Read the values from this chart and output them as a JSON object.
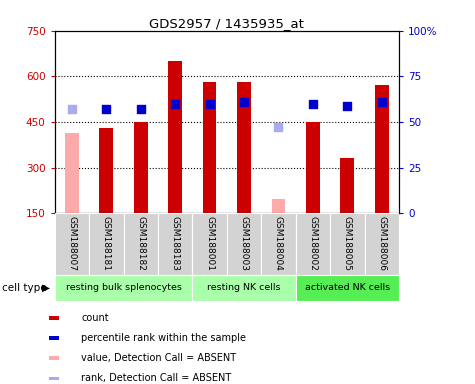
{
  "title": "GDS2957 / 1435935_at",
  "samples": [
    "GSM188007",
    "GSM188181",
    "GSM188182",
    "GSM188183",
    "GSM188001",
    "GSM188003",
    "GSM188004",
    "GSM188002",
    "GSM188005",
    "GSM188006"
  ],
  "count_values": [
    null,
    430,
    450,
    650,
    580,
    580,
    null,
    450,
    330,
    570
  ],
  "count_absent_values": [
    415,
    null,
    null,
    null,
    null,
    null,
    195,
    null,
    null,
    null
  ],
  "percentile_values": [
    null,
    57,
    57,
    60,
    60,
    61,
    null,
    60,
    59,
    61
  ],
  "percentile_absent_values": [
    57,
    null,
    null,
    null,
    null,
    null,
    47,
    null,
    null,
    null
  ],
  "ylim_left": [
    150,
    750
  ],
  "ylim_right": [
    0,
    100
  ],
  "yticks_left": [
    150,
    300,
    450,
    600,
    750
  ],
  "yticks_right": [
    0,
    25,
    50,
    75,
    100
  ],
  "ytick_labels_right": [
    "0",
    "25",
    "50",
    "75",
    "100%"
  ],
  "group_boundaries": [
    {
      "start": 0,
      "end": 4,
      "label": "resting bulk splenocytes",
      "color": "#aaffaa"
    },
    {
      "start": 4,
      "end": 7,
      "label": "resting NK cells",
      "color": "#aaffaa"
    },
    {
      "start": 7,
      "end": 10,
      "label": "activated NK cells",
      "color": "#55ee55"
    }
  ],
  "bar_color_present": "#cc0000",
  "bar_color_absent": "#ffaaaa",
  "dot_color_present": "#0000cc",
  "dot_color_absent": "#aaaaee",
  "bar_width": 0.4,
  "dot_size": 40,
  "background_color": "#ffffff",
  "grid_dotted_lines": [
    300,
    450,
    600
  ],
  "cell_type_label": "cell type",
  "legend_items": [
    {
      "label": "count",
      "color": "#cc0000"
    },
    {
      "label": "percentile rank within the sample",
      "color": "#0000cc"
    },
    {
      "label": "value, Detection Call = ABSENT",
      "color": "#ffaaaa"
    },
    {
      "label": "rank, Detection Call = ABSENT",
      "color": "#aaaaee"
    }
  ]
}
